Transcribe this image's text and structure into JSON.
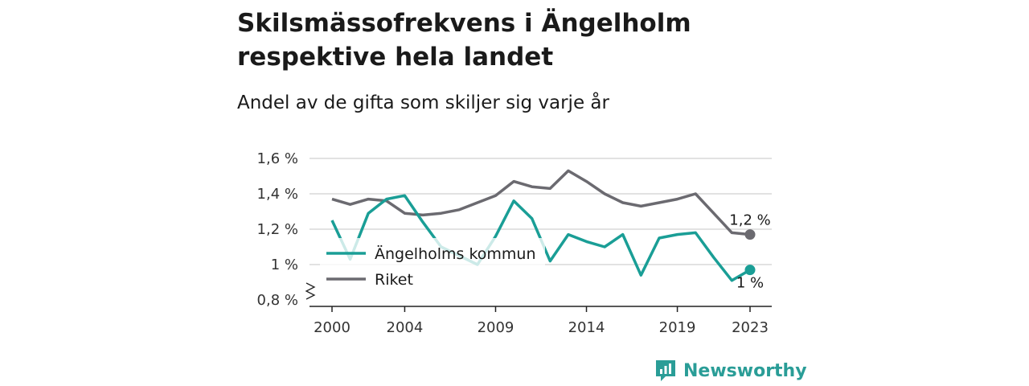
{
  "title": "Skilsmässofrekvens i Ängelholm respektive hela landet",
  "subtitle": "Andel av de gifta som skiljer sig varje år",
  "brand": "Newsworthy",
  "colors": {
    "kommun": "#1a9e96",
    "riket": "#6b6a70",
    "grid": "#d9d9d9"
  },
  "chart_data": {
    "type": "line",
    "title": "Skilsmässofrekvens i Ängelholm respektive hela landet",
    "subtitle": "Andel av de gifta som skiljer sig varje år",
    "xlabel": "",
    "ylabel": "",
    "x_ticks": [
      "2000",
      "2004",
      "2009",
      "2014",
      "2019",
      "2023"
    ],
    "y_ticks": [
      "0,8 %",
      "1 %",
      "1,2 %",
      "1,4 %",
      "1,6 %"
    ],
    "ylim": [
      0.8,
      1.6
    ],
    "xlim": [
      2000,
      2023
    ],
    "grid": true,
    "legend_position": "left",
    "series": [
      {
        "name": "Ängelholms kommun",
        "x": [
          2000,
          2001,
          2002,
          2003,
          2004,
          2005,
          2006,
          2007,
          2008,
          2009,
          2010,
          2011,
          2012,
          2013,
          2014,
          2015,
          2016,
          2017,
          2018,
          2019,
          2020,
          2021,
          2022,
          2023
        ],
        "values": [
          1.25,
          1.03,
          1.29,
          1.37,
          1.39,
          1.24,
          1.1,
          1.05,
          1.0,
          1.16,
          1.36,
          1.26,
          1.02,
          1.17,
          1.13,
          1.1,
          1.17,
          0.94,
          1.15,
          1.17,
          1.18,
          1.04,
          0.91,
          0.97
        ],
        "end_label": "1 %"
      },
      {
        "name": "Riket",
        "x": [
          2000,
          2001,
          2002,
          2003,
          2004,
          2005,
          2006,
          2007,
          2008,
          2009,
          2010,
          2011,
          2012,
          2013,
          2014,
          2015,
          2016,
          2017,
          2018,
          2019,
          2020,
          2021,
          2022,
          2023
        ],
        "values": [
          1.37,
          1.34,
          1.37,
          1.36,
          1.29,
          1.28,
          1.29,
          1.31,
          1.35,
          1.39,
          1.47,
          1.44,
          1.43,
          1.53,
          1.47,
          1.4,
          1.35,
          1.33,
          1.35,
          1.37,
          1.4,
          1.29,
          1.18,
          1.17
        ],
        "end_label": "1,2 %"
      }
    ]
  }
}
